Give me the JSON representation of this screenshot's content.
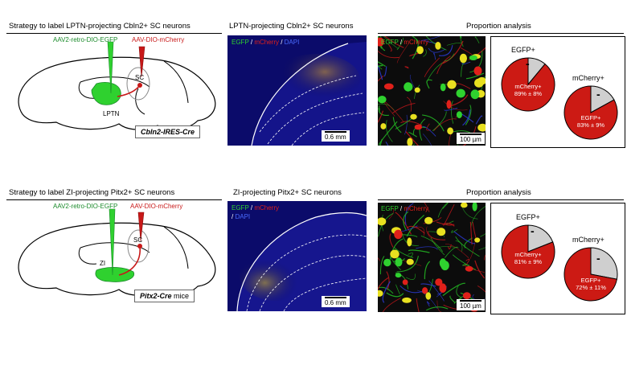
{
  "rows": [
    {
      "strategy_title": "Strategy to label LPTN-projecting Cbln2+ SC neurons",
      "virus_left": "AAV2-retro-DIO-EGFP",
      "virus_right": "AAV-DIO-mCherry",
      "label_sc": "SC",
      "label_target": "LPTN",
      "cre_line_italic": "Cbln2-IRES-Cre",
      "cre_line_suffix": "",
      "section_title": "LPTN-projecting Cbln2+ SC neurons",
      "stain_egfp": "EGFP",
      "stain_sep1": " / ",
      "stain_mcherry": "mCherry",
      "stain_sep2": " / ",
      "stain_dapi": "DAPI",
      "section_scale": "0.6 mm",
      "proportion_title": "Proportion analysis",
      "conf_egfp": "EGFP",
      "conf_sep": " / ",
      "conf_mcherry": "mCherry",
      "conf_scale": "100 µm",
      "pie1_title": "EGFP+",
      "pie1_text_a": "mCherry+",
      "pie1_text_b": "89% ± 8%",
      "pie1_dash": "-",
      "pie2_title": "mCherry+",
      "pie2_text_a": "EGFP+",
      "pie2_text_b": "83% ± 9%",
      "pie2_dash": "-"
    },
    {
      "strategy_title": "Strategy to label ZI-projecting Pitx2+ SC neurons",
      "virus_left": "AAV2-retro-DIO-EGFP",
      "virus_right": "AAV-DIO-mCherry",
      "label_sc": "SC",
      "label_target": "ZI",
      "cre_line_italic": "Pitx2-Cre",
      "cre_line_suffix": " mice",
      "section_title": "ZI-projecting Pitx2+ SC neurons",
      "stain_egfp": "EGFP",
      "stain_sep1": " / ",
      "stain_mcherry": "mCherry",
      "stain_sep2": "/ ",
      "stain_dapi": "DAPI",
      "section_scale": "0.6 mm",
      "proportion_title": "Proportion analysis",
      "conf_egfp": "EGFP",
      "conf_sep": " / ",
      "conf_mcherry": "mCherry",
      "conf_scale": "100 µm",
      "pie1_title": "EGFP+",
      "pie1_text_a": "mCherry+",
      "pie1_text_b": "81% ± 9%",
      "pie1_dash": "-",
      "pie2_title": "mCherry+",
      "pie2_text_a": "EGFP+",
      "pie2_text_b": "72% ± 11%",
      "pie2_dash": "-"
    }
  ],
  "pies": [
    {
      "row": 0,
      "which": 1,
      "red_fraction": 0.89
    },
    {
      "row": 0,
      "which": 2,
      "red_fraction": 0.83
    },
    {
      "row": 1,
      "which": 1,
      "red_fraction": 0.81
    },
    {
      "row": 1,
      "which": 2,
      "red_fraction": 0.72
    }
  ],
  "colors": {
    "egfp": "#2fd12f",
    "mcherry": "#e0201a",
    "dapi": "#4a6cff",
    "pie_red": "#cc1a14",
    "pie_grey": "#cfcfcf",
    "virus_green": "#1a8a2a",
    "virus_red": "#c81818"
  }
}
